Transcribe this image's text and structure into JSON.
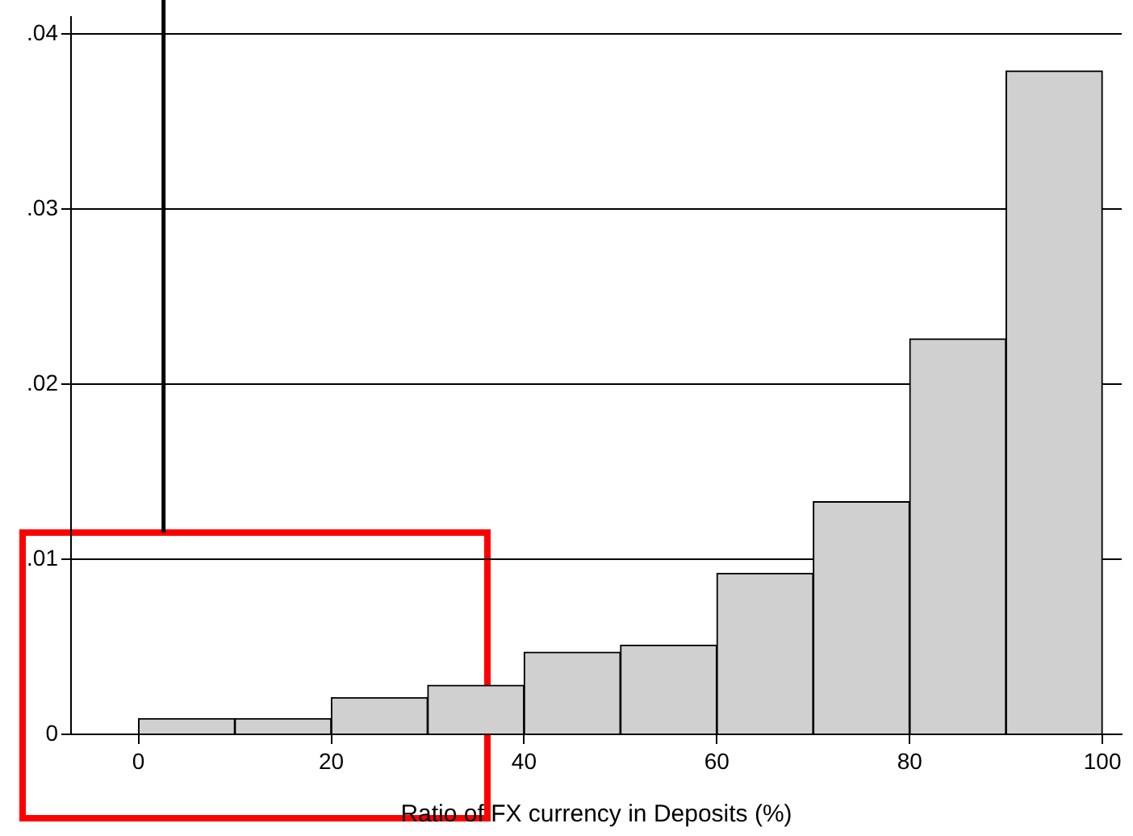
{
  "chart_data": {
    "type": "histogram",
    "xlabel": "Ratio of FX currency in Deposits (%)",
    "bins": [
      0,
      10,
      20,
      30,
      40,
      50,
      60,
      70,
      80,
      90,
      100
    ],
    "values": [
      0.0009,
      0.0009,
      0.0021,
      0.0028,
      0.0047,
      0.0051,
      0.0092,
      0.0133,
      0.0226,
      0.0379
    ],
    "color": "#d0d0d0",
    "xlim": [
      -7,
      102
    ],
    "xticks": [
      0,
      20,
      40,
      60,
      80,
      100
    ],
    "ylim": [
      0,
      0.041
    ],
    "yticks": [
      0,
      {
        "value": 0.01,
        "label": ".01"
      },
      {
        "value": 0.02,
        "label": ".02"
      },
      {
        "value": 0.03,
        "label": ".03"
      },
      {
        "value": 0.04,
        "label": ".04"
      }
    ],
    "ref_lines": [
      {
        "axis": "x",
        "value": 2.6,
        "color": "#000000"
      }
    ],
    "grid": "y",
    "legend": false
  }
}
